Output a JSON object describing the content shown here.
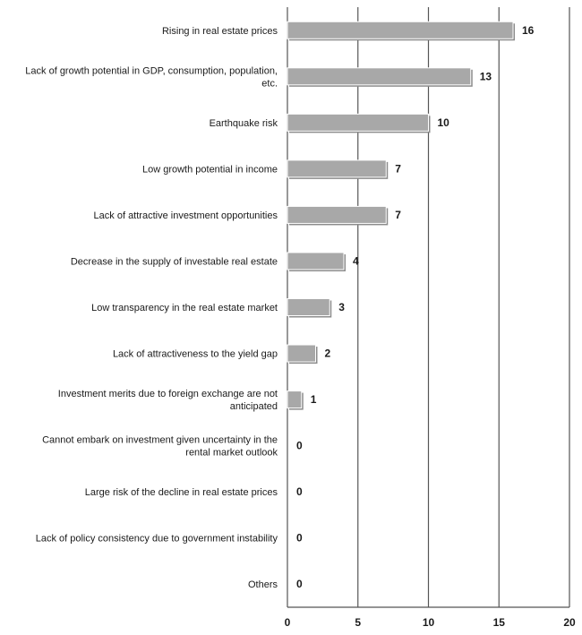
{
  "chart_data": {
    "type": "bar",
    "orientation": "horizontal",
    "categories": [
      "Rising in real estate prices",
      "Lack of growth potential in GDP, consumption, population, etc.",
      "Earthquake risk",
      "Low growth potential in income",
      "Lack of attractive investment opportunities",
      "Decrease in the supply of investable real estate",
      "Low transparency in the real estate market",
      "Lack of attractiveness to the yield gap",
      "Investment merits due to foreign exchange are not anticipated",
      "Cannot embark on investment given uncertainty in the rental market outlook",
      "Large risk of the decline in real estate prices",
      "Lack of policy consistency due to government instability",
      "Others"
    ],
    "values": [
      16,
      13,
      10,
      7,
      7,
      4,
      3,
      2,
      1,
      0,
      0,
      0,
      0
    ],
    "title": "",
    "xlabel": "",
    "ylabel": "",
    "xlim": [
      0,
      20
    ],
    "xticks": [
      0,
      5,
      10,
      15,
      20
    ],
    "grid": "vertical",
    "legend": "none",
    "colors": {
      "bar": "#a8a8a8",
      "bar_shadow": "#8c8c8c",
      "grid": "#555555",
      "text": "#1a1a1a"
    }
  }
}
